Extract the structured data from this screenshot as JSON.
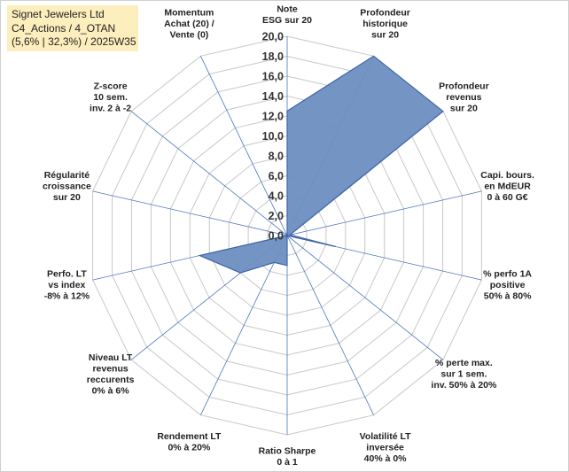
{
  "header": {
    "line1": "Signet Jewelers Ltd",
    "line2": "C4_Actions / 4_OTAN",
    "line3": "(5,6% | 32,3%) / 2025W35"
  },
  "colors": {
    "fill": "#6d8fc1",
    "stroke": "#3f64a8",
    "grid": "#c8c8c8",
    "spoke": "#4a74c0",
    "header_bg": "#fdeebd"
  },
  "chart_data": {
    "type": "radar",
    "rmin": 0,
    "rmax": 20,
    "tick_step": 2,
    "tick_labels": [
      "0,0",
      "2,0",
      "4,0",
      "6,0",
      "8,0",
      "10,0",
      "12,0",
      "14,0",
      "16,0",
      "18,0",
      "20,0"
    ],
    "axes": [
      {
        "label": [
          "Note",
          "ESG sur 20"
        ],
        "value": 12.5
      },
      {
        "label": [
          "Profondeur",
          "historique",
          "sur 20"
        ],
        "value": 20.0
      },
      {
        "label": [
          "Profondeur",
          "revenus",
          "sur 20"
        ],
        "value": 20.0
      },
      {
        "label": [
          "Capi. bours.",
          "en MdEUR",
          "0 à 60 G€"
        ],
        "value": 0.3
      },
      {
        "label": [
          "% perfo 1A",
          "positive",
          "50% à 80%"
        ],
        "value": 5.0
      },
      {
        "label": [
          "% perte max.",
          "sur 1 sem.",
          "inv. 50% à 20%"
        ],
        "value": 0.0
      },
      {
        "label": [
          "Volatilité LT",
          "inversée",
          "40% à 0%"
        ],
        "value": 0.0
      },
      {
        "label": [
          "Ratio Sharpe",
          "0 à 1"
        ],
        "value": 3.0
      },
      {
        "label": [
          "Rendement LT",
          "0% à 20%"
        ],
        "value": 3.0
      },
      {
        "label": [
          "Niveau LT",
          "revenus",
          "reccurents",
          "0% à 6%"
        ],
        "value": 6.0
      },
      {
        "label": [
          "Perfo. LT",
          "vs index",
          "-8% à 12%"
        ],
        "value": 9.0
      },
      {
        "label": [
          "Régularité",
          "croissance",
          "sur 20"
        ],
        "value": 0.0
      },
      {
        "label": [
          "Z-score",
          "10 sem.",
          "inv. 2 à -2"
        ],
        "value": 0.0
      },
      {
        "label": [
          "Momentum",
          "Achat (20) /",
          "Vente (0)"
        ],
        "value": 0.0
      }
    ]
  }
}
